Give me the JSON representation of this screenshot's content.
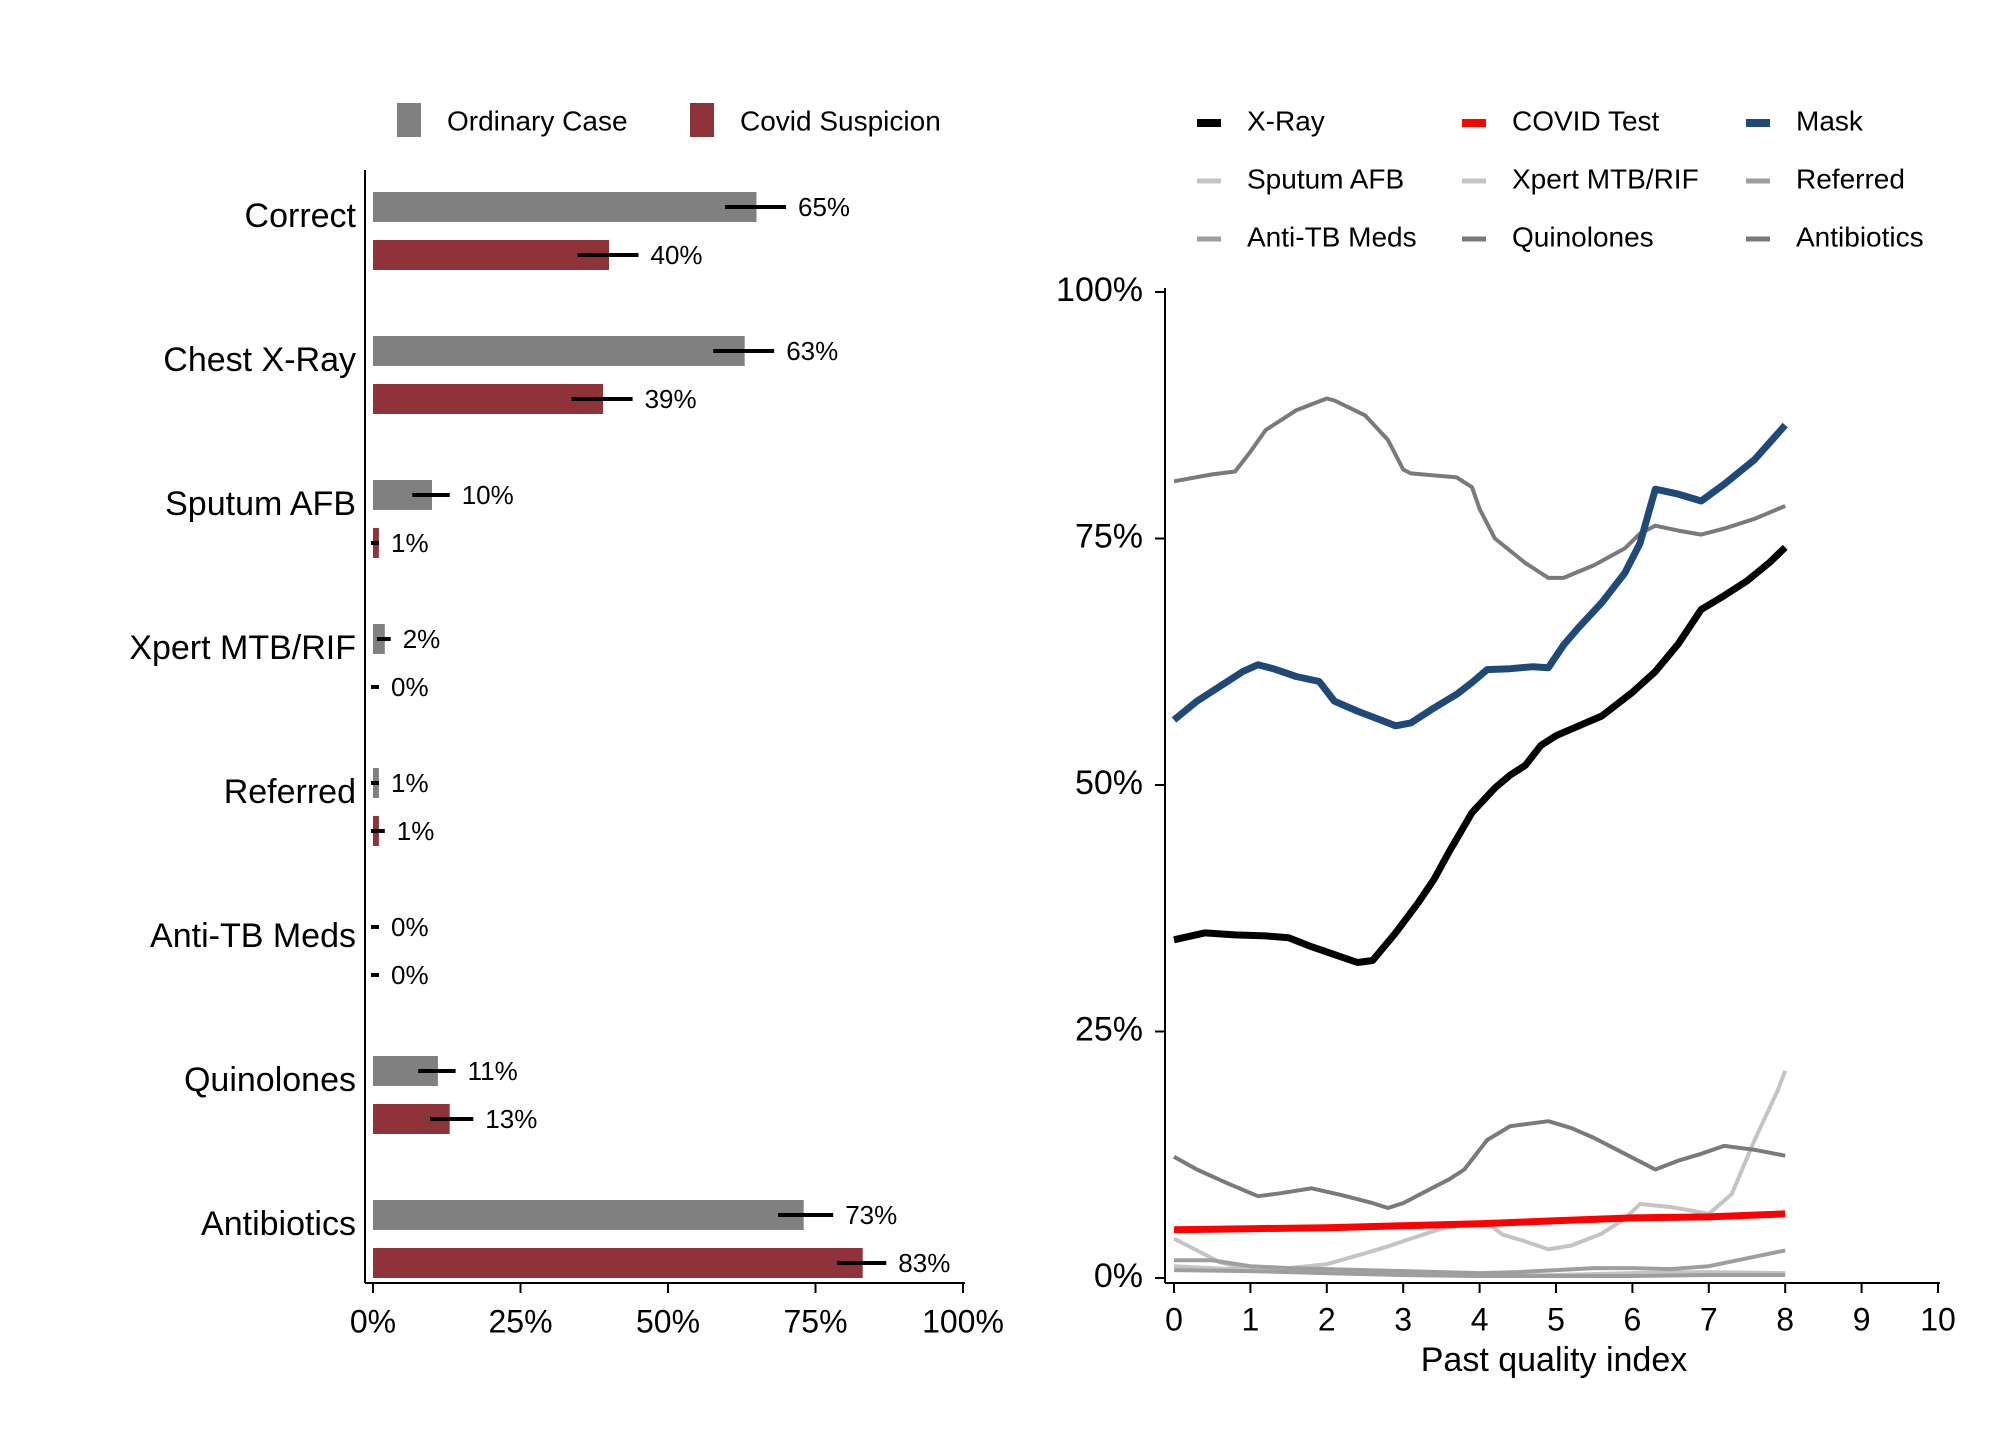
{
  "colors": {
    "ordinary": "#808080",
    "covid": "#8e3339",
    "xray": "#000000",
    "covid_test": "#ff0000",
    "mask": "#1f4a77",
    "light": "#c4c4c4",
    "mid": "#9e9e9e",
    "dark": "#7a7a7a"
  },
  "chart_data": [
    {
      "type": "bar",
      "orientation": "horizontal",
      "categories": [
        "Correct",
        "Chest X-Ray",
        "Sputum AFB",
        "Xpert MTB/RIF",
        "Referred",
        "Anti-TB Meds",
        "Quinolones",
        "Antibiotics"
      ],
      "series": [
        {
          "name": "Ordinary Case",
          "values": [
            65,
            63,
            10,
            2,
            1,
            0,
            11,
            73
          ],
          "ci": [
            [
              60,
              70
            ],
            [
              58,
              68
            ],
            [
              7,
              13
            ],
            [
              1,
              3
            ],
            [
              0,
              1
            ],
            [
              0,
              0
            ],
            [
              8,
              14
            ],
            [
              69,
              78
            ]
          ],
          "labels": [
            "65%",
            "63%",
            "10%",
            "2%",
            "1%",
            "0%",
            "11%",
            "73%"
          ]
        },
        {
          "name": "Covid Suspicion",
          "values": [
            40,
            39,
            1,
            0,
            1,
            0,
            13,
            83
          ],
          "ci": [
            [
              35,
              45
            ],
            [
              34,
              44
            ],
            [
              0,
              1
            ],
            [
              0,
              0
            ],
            [
              0,
              2
            ],
            [
              0,
              0
            ],
            [
              10,
              17
            ],
            [
              79,
              87
            ]
          ],
          "labels": [
            "40%",
            "39%",
            "1%",
            "0%",
            "1%",
            "0%",
            "13%",
            "83%"
          ]
        }
      ],
      "xlim": [
        0,
        100
      ],
      "xticks": [
        0,
        25,
        50,
        75,
        100
      ],
      "xtick_labels": [
        "0%",
        "25%",
        "50%",
        "75%",
        "100%"
      ],
      "legend": "top",
      "grid": false
    },
    {
      "type": "line",
      "xlabel": "Past quality index",
      "xlim": [
        0,
        10
      ],
      "xticks": [
        0,
        1,
        2,
        3,
        4,
        5,
        6,
        7,
        8,
        9,
        10
      ],
      "xtick_labels": [
        "0",
        "1",
        "2",
        "3",
        "4",
        "5",
        "6",
        "7",
        "8",
        "9",
        "10"
      ],
      "ylim": [
        0,
        100
      ],
      "yticks": [
        0,
        25,
        50,
        75,
        100
      ],
      "ytick_labels": [
        "0%",
        "25%",
        "50%",
        "75%",
        "100%"
      ],
      "legend": "top",
      "grid": false,
      "series": [
        {
          "name": "X-Ray",
          "color": "xray",
          "width": 7,
          "x": [
            0,
            0.4,
            0.8,
            1.2,
            1.5,
            1.8,
            2.1,
            2.4,
            2.6,
            2.9,
            3.2,
            3.4,
            3.6,
            3.9,
            4.2,
            4.4,
            4.6,
            4.8,
            5.0,
            5.3,
            5.6,
            6.0,
            6.3,
            6.6,
            6.9,
            7.2,
            7.5,
            7.8,
            8.0
          ],
          "y": [
            34.3,
            35.0,
            34.8,
            34.7,
            34.5,
            33.6,
            32.8,
            32.0,
            32.2,
            35.0,
            38.1,
            40.4,
            43.2,
            47.2,
            49.7,
            51.0,
            52.0,
            54.0,
            55.0,
            56.0,
            57.0,
            59.4,
            61.5,
            64.3,
            67.8,
            69.2,
            70.7,
            72.6,
            74.1
          ]
        },
        {
          "name": "COVID Test",
          "color": "covid_test",
          "width": 7,
          "x": [
            0,
            1,
            2,
            3,
            4,
            5,
            6,
            7,
            8
          ],
          "y": [
            4.9,
            5.0,
            5.1,
            5.3,
            5.5,
            5.8,
            6.1,
            6.2,
            6.5
          ]
        },
        {
          "name": "Mask",
          "color": "mask",
          "width": 7,
          "x": [
            0,
            0.3,
            0.6,
            0.9,
            1.1,
            1.3,
            1.6,
            1.9,
            2.1,
            2.4,
            2.7,
            2.9,
            3.1,
            3.4,
            3.7,
            3.9,
            4.1,
            4.4,
            4.7,
            4.9,
            5.1,
            5.3,
            5.6,
            5.9,
            6.1,
            6.3,
            6.6,
            6.9,
            7.2,
            7.6,
            8.0
          ],
          "y": [
            56.6,
            58.5,
            60.0,
            61.5,
            62.2,
            61.8,
            61.0,
            60.5,
            58.5,
            57.5,
            56.6,
            56.0,
            56.3,
            57.8,
            59.2,
            60.4,
            61.7,
            61.8,
            62.0,
            61.9,
            64.2,
            66.0,
            68.5,
            71.5,
            74.5,
            80.0,
            79.5,
            78.8,
            80.5,
            83.0,
            86.5
          ]
        },
        {
          "name": "Sputum AFB",
          "color": "light",
          "width": 4,
          "x": [
            0,
            0.3,
            0.6,
            1.0,
            1.5,
            2.0,
            2.5,
            2.8,
            3.1,
            3.5,
            3.8,
            4.1,
            4.3,
            4.6,
            4.9,
            5.2,
            5.6,
            5.9,
            6.1,
            6.5,
            6.8,
            7.0,
            7.3,
            7.6,
            7.9,
            8.0
          ],
          "y": [
            4.0,
            2.8,
            1.6,
            0.8,
            1.0,
            1.4,
            2.5,
            3.2,
            4.0,
            5.0,
            5.4,
            5.6,
            4.4,
            3.7,
            2.9,
            3.3,
            4.5,
            6.0,
            7.5,
            7.2,
            6.8,
            6.5,
            8.5,
            14.0,
            19.0,
            21.0
          ]
        },
        {
          "name": "Xpert MTB/RIF",
          "color": "light",
          "width": 4,
          "x": [
            0,
            1,
            2,
            3,
            4,
            5,
            6,
            7,
            8
          ],
          "y": [
            1.2,
            0.8,
            0.5,
            0.3,
            0.2,
            0.3,
            0.5,
            0.6,
            0.5
          ]
        },
        {
          "name": "Referred",
          "color": "mid",
          "width": 4,
          "x": [
            0,
            0.5,
            1.0,
            1.5,
            2.0,
            2.5,
            3.0,
            3.5,
            4.0,
            4.5,
            5.0,
            5.5,
            6.0,
            6.5,
            7.0,
            7.5,
            8.0
          ],
          "y": [
            1.8,
            1.8,
            1.2,
            1.0,
            0.9,
            0.8,
            0.7,
            0.6,
            0.5,
            0.6,
            0.8,
            1.0,
            1.0,
            0.9,
            1.2,
            2.0,
            2.8
          ]
        },
        {
          "name": "Anti-TB Meds",
          "color": "mid",
          "width": 4,
          "x": [
            0,
            1,
            2,
            3,
            4,
            5,
            6,
            7,
            8
          ],
          "y": [
            0.8,
            0.7,
            0.5,
            0.3,
            0.2,
            0.2,
            0.2,
            0.3,
            0.3
          ]
        },
        {
          "name": "Quinolones",
          "color": "dark",
          "width": 4,
          "x": [
            0,
            0.3,
            0.7,
            1.1,
            1.4,
            1.8,
            2.2,
            2.6,
            2.8,
            3.0,
            3.3,
            3.6,
            3.8,
            4.1,
            4.4,
            4.6,
            4.9,
            5.2,
            5.5,
            5.8,
            6.0,
            6.3,
            6.6,
            6.9,
            7.2,
            7.6,
            8.0
          ],
          "y": [
            12.3,
            11.0,
            9.6,
            8.3,
            8.6,
            9.1,
            8.4,
            7.6,
            7.1,
            7.6,
            8.8,
            10.0,
            11.0,
            14.0,
            15.4,
            15.6,
            15.9,
            15.2,
            14.2,
            13.0,
            12.2,
            11.0,
            11.9,
            12.6,
            13.4,
            13.0,
            12.4
          ]
        },
        {
          "name": "Antibiotics",
          "color": "dark",
          "width": 4,
          "x": [
            0,
            0.5,
            0.8,
            1.0,
            1.2,
            1.6,
            2.0,
            2.1,
            2.5,
            2.8,
            3.0,
            3.1,
            3.4,
            3.7,
            3.9,
            4.0,
            4.2,
            4.6,
            4.9,
            5.1,
            5.5,
            5.9,
            6.1,
            6.3,
            6.6,
            6.9,
            7.2,
            7.6,
            8.0
          ],
          "y": [
            80.8,
            81.5,
            81.8,
            83.8,
            86.0,
            88.0,
            89.2,
            89.0,
            87.5,
            85.0,
            82.0,
            81.6,
            81.4,
            81.2,
            80.2,
            78.0,
            75.0,
            72.5,
            71.0,
            71.0,
            72.3,
            74.0,
            75.5,
            76.3,
            75.8,
            75.4,
            76.0,
            77.0,
            78.3
          ]
        }
      ]
    }
  ]
}
